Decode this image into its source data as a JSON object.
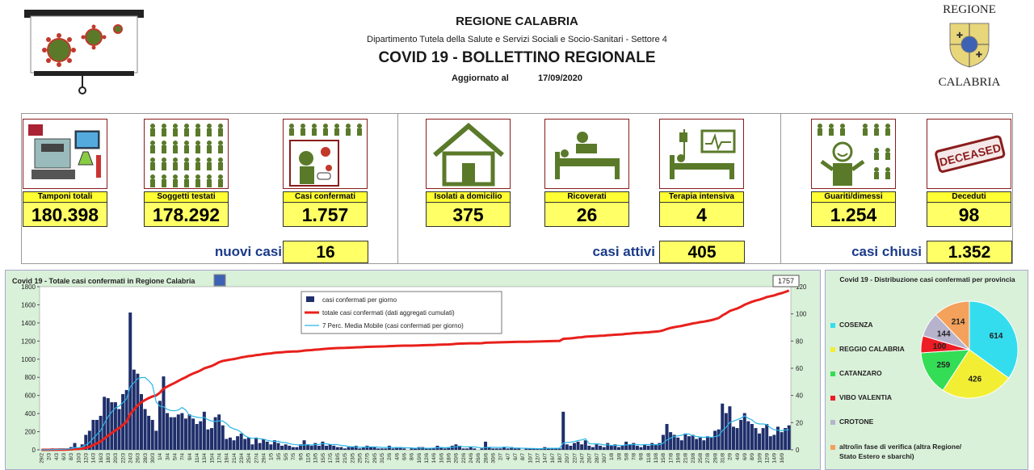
{
  "header": {
    "region": "REGIONE CALABRIA",
    "department": "Dipartimento Tutela della Salute e Servizi Sociali e Socio-Sanitari - Settore 4",
    "title": "COVID 19 - BOLLETTINO REGIONALE",
    "updated_label": "Aggiornato al",
    "updated_date": "17/09/2020",
    "logo_top": "REGIONE",
    "logo_bottom": "CALABRIA"
  },
  "stats": {
    "tamponi": {
      "label": "Tamponi totali",
      "value": "180.398"
    },
    "soggetti": {
      "label": "Soggetti testati",
      "value": "178.292"
    },
    "confermati": {
      "label": "Casi confermati",
      "value": "1.757"
    },
    "isolati": {
      "label": "Isolati a domicilio",
      "value": "375"
    },
    "ricoverati": {
      "label": "Ricoverati",
      "value": "26"
    },
    "terapia": {
      "label": "Terapia intensiva",
      "value": "4"
    },
    "guariti": {
      "label": "Guariti/dimessi",
      "value": "1.254"
    },
    "deceduti": {
      "label": "Deceduti",
      "value": "98"
    },
    "deceased_stamp": "DECEASED"
  },
  "summary": {
    "nuovi_label": "nuovi casi",
    "nuovi_value": "16",
    "attivi_label": "casi attivi",
    "attivi_value": "405",
    "chiusi_label": "casi chiusi",
    "chiusi_value": "1.352"
  },
  "chart_data": [
    {
      "type": "bar",
      "title": "Covid 19 - Totale casi confermati in Regione Calabria",
      "last_value_label": "1757",
      "y_left_ticks": [
        0,
        200,
        400,
        600,
        800,
        1000,
        1200,
        1400,
        1600,
        1800
      ],
      "y_right_ticks": [
        0,
        20,
        40,
        60,
        80,
        100,
        120
      ],
      "ylim_left": [
        0,
        1800
      ],
      "ylim_right": [
        0,
        120
      ],
      "x_tick_labels": [
        "29/2",
        "2/3",
        "4/3",
        "6/3",
        "8/3",
        "10/3",
        "12/3",
        "14/3",
        "16/3",
        "18/3",
        "20/3",
        "22/3",
        "24/3",
        "26/3",
        "28/3",
        "30/3",
        "1/4",
        "3/4",
        "5/4",
        "7/4",
        "9/4",
        "11/4",
        "13/4",
        "15/4",
        "17/4",
        "19/4",
        "21/4",
        "23/4",
        "25/4",
        "27/4",
        "29/4",
        "1/5",
        "3/5",
        "5/5",
        "7/5",
        "9/5",
        "11/5",
        "13/5",
        "15/5",
        "17/5",
        "19/5",
        "21/5",
        "23/5",
        "25/5",
        "27/5",
        "29/5",
        "31/5",
        "2/6",
        "4/6",
        "6/6",
        "8/6",
        "10/6",
        "12/6",
        "14/6",
        "16/6",
        "18/6",
        "20/6",
        "22/6",
        "24/6",
        "26/6",
        "28/6",
        "30/6",
        "2/7",
        "4/7",
        "6/7",
        "8/7",
        "10/7",
        "12/7",
        "14/7",
        "16/7",
        "18/7",
        "20/7",
        "22/7",
        "24/7",
        "26/7",
        "28/7",
        "30/7",
        "1/8",
        "3/8",
        "5/8",
        "7/8",
        "9/8",
        "11/8",
        "13/8",
        "15/8",
        "17/8",
        "19/8",
        "21/8",
        "23/8",
        "25/8",
        "27/8",
        "29/8",
        "31/8",
        "2/9",
        "4/9",
        "6/9",
        "8/9",
        "10/9",
        "12/9",
        "14/9",
        "16/9"
      ],
      "daily_values": [
        0,
        0,
        0,
        1,
        0,
        1,
        1,
        1,
        2,
        5,
        1,
        4,
        11,
        14,
        22,
        22,
        25,
        39,
        38,
        35,
        35,
        30,
        41,
        44,
        101,
        59,
        56,
        41,
        30,
        25,
        22,
        14,
        36,
        54,
        27,
        24,
        24,
        26,
        27,
        23,
        26,
        23,
        19,
        21,
        28,
        15,
        16,
        24,
        26,
        18,
        8,
        9,
        7,
        10,
        12,
        8,
        9,
        4,
        9,
        5,
        8,
        6,
        4,
        7,
        5,
        3,
        4,
        3,
        2,
        2,
        4,
        7,
        4,
        3,
        5,
        3,
        6,
        3,
        4,
        3,
        2,
        2,
        1,
        2,
        2,
        3,
        1,
        2,
        3,
        2,
        2,
        1,
        1,
        1,
        3,
        1,
        2,
        2,
        1,
        0,
        1,
        1,
        2,
        2,
        1,
        1,
        1,
        3,
        2,
        1,
        2,
        3,
        4,
        3,
        1,
        1,
        2,
        1,
        0,
        1,
        6,
        2,
        1,
        1,
        1,
        2,
        1,
        2,
        1,
        1,
        0,
        1,
        1,
        1,
        1,
        1,
        2,
        1,
        1,
        1,
        1,
        28,
        4,
        3,
        5,
        6,
        4,
        7,
        3,
        2,
        4,
        3,
        2,
        5,
        3,
        4,
        2,
        3,
        6,
        4,
        5,
        3,
        2,
        4,
        3,
        5,
        4,
        5,
        11,
        19,
        13,
        11,
        9,
        7,
        12,
        10,
        11,
        8,
        9,
        7,
        10,
        9,
        14,
        15,
        34,
        27,
        32,
        17,
        16,
        22,
        27,
        21,
        19,
        16,
        12,
        16,
        19,
        10,
        11,
        17,
        13,
        16,
        18
      ],
      "cumulative_end": 1757,
      "series": [
        {
          "name": "casi confermati per giorno",
          "color": "#1f2f6b"
        },
        {
          "name": "totale casi confermati (dati aggregati cumulati)",
          "color": "#e8201c"
        },
        {
          "name": "7 Perc. Media Mobile (casi confermati per giorno)",
          "color": "#29b6e8"
        }
      ]
    },
    {
      "type": "pie",
      "title": "Covid 19 - Distribuzione casi confermati per provincia",
      "slices": [
        {
          "name": "COSENZA",
          "value": 614,
          "color": "#33ddee"
        },
        {
          "name": "REGGIO CALABRIA",
          "value": 426,
          "color": "#f2ee33"
        },
        {
          "name": "CATANZARO",
          "value": 259,
          "color": "#33dd55"
        },
        {
          "name": "VIBO VALENTIA",
          "value": 100,
          "color": "#ee1c25"
        },
        {
          "name": "CROTONE",
          "value": 144,
          "color": "#b7b3cc"
        },
        {
          "name": "altro/in fase di verifica (altra Regione/ Stato Estero e sbarchi)",
          "value": 214,
          "color": "#f4a15c"
        }
      ],
      "legend_line1": "altro/in fase di verifica (altra Regione/",
      "legend_line2": "Stato Estero e sbarchi)"
    }
  ]
}
